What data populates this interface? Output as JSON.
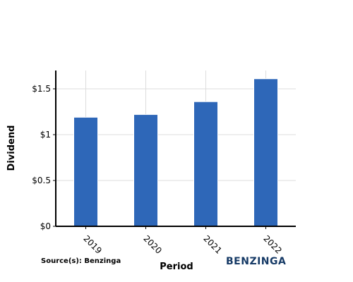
{
  "chart_data": {
    "type": "bar",
    "categories": [
      "2019",
      "2020",
      "2021",
      "2022"
    ],
    "values": [
      1.19,
      1.22,
      1.36,
      1.61
    ],
    "xlabel": "Period",
    "ylabel": "Dividend",
    "ylim": [
      0,
      1.7
    ],
    "yticks": [
      0,
      0.5,
      1,
      1.5
    ],
    "ytick_labels": [
      "$0",
      "$0.5",
      "$1",
      "$1.5"
    ],
    "grid": true,
    "bar_color": "#2e67b8",
    "grid_color": "#dddddd",
    "source": "Source(s): Benzinga",
    "brand": "BENZINGA",
    "brand_color": "#163a66"
  }
}
